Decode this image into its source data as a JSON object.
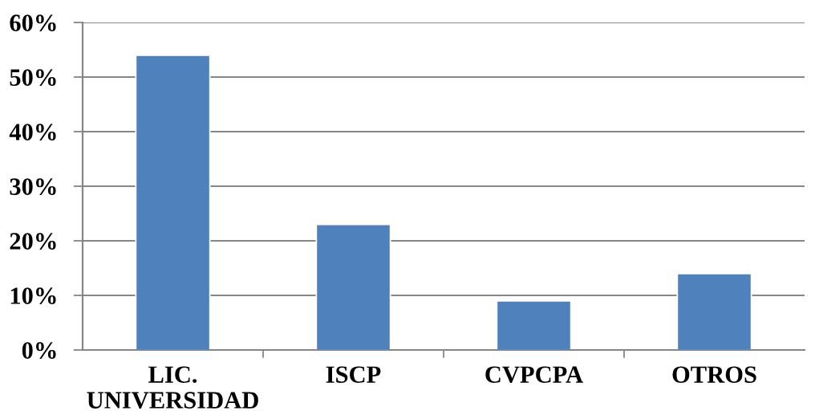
{
  "chart_data": {
    "type": "bar",
    "categories": [
      "LIC.\nUNIVERSIDAD",
      "ISCP",
      "CVPCPA",
      "OTROS"
    ],
    "values": [
      54,
      23,
      9,
      14
    ],
    "color": "#4f81bd",
    "ylim": [
      0,
      60
    ],
    "yticks": [
      {
        "value": 0,
        "label": "0%"
      },
      {
        "value": 10,
        "label": "10%"
      },
      {
        "value": 20,
        "label": "20%"
      },
      {
        "value": 30,
        "label": "30%"
      },
      {
        "value": 40,
        "label": "40%"
      },
      {
        "value": 50,
        "label": "50%"
      },
      {
        "value": 60,
        "label": "60%"
      }
    ],
    "grid": "y",
    "legend": false
  }
}
